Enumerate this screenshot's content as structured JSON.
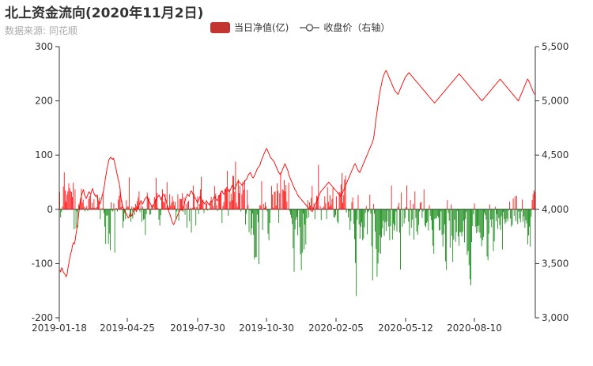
{
  "title": "北上资金流向(2020年11月2日)",
  "subtitle": "数据来源: 同花顺",
  "legend": {
    "bar_label": "当日净值(亿)",
    "line_label": "收盘价（右轴）"
  },
  "colors": {
    "positive": "#ff0000",
    "negative": "#008000",
    "line": "#ff0000",
    "legend_bar": "#c23531",
    "axis": "#333333"
  },
  "chart_data": {
    "type": "bar+line",
    "title": "北上资金流向(2020年11月2日)",
    "x_tick_labels": [
      "2019-01-18",
      "2019-04-25",
      "2019-07-30",
      "2019-10-30",
      "2020-02-05",
      "2020-05-12",
      "2020-08-10"
    ],
    "y_left": {
      "ticks": [
        300,
        200,
        100,
        0,
        -100,
        -200
      ],
      "ylim": [
        -200,
        300
      ]
    },
    "y_right": {
      "ticks": [
        "5,500",
        "5,000",
        "4,500",
        "4,000",
        "3,500",
        "3,000"
      ],
      "ylim": [
        3000,
        5500
      ]
    },
    "series": [
      {
        "name": "当日净值(亿)",
        "type": "bar",
        "values": [
          32,
          -15,
          -5,
          5,
          42,
          68,
          35,
          14,
          27,
          33,
          48,
          39,
          34,
          32,
          23,
          49,
          -37,
          37,
          -35,
          -4,
          -33,
          9,
          6,
          20,
          38,
          12,
          18,
          5,
          -4,
          3,
          6,
          -3,
          19,
          24,
          27,
          2,
          12,
          3,
          19,
          3,
          2,
          4,
          27,
          12,
          22,
          -18,
          1,
          2,
          33,
          -7,
          -32,
          -64,
          -12,
          -11,
          -64,
          -45,
          -75,
          13,
          -3,
          -4,
          11,
          -80,
          2,
          2,
          -4,
          18,
          25,
          38,
          4,
          16,
          -34,
          -22,
          -7,
          -18,
          17,
          5,
          5,
          59,
          -14,
          -23,
          5,
          -17,
          4,
          -10,
          10,
          6,
          15,
          22,
          33,
          -5,
          11,
          -23,
          5,
          -19,
          -18,
          -47,
          -9,
          31,
          20,
          21,
          -10,
          -9,
          7,
          9,
          1,
          23,
          19,
          58,
          30,
          3,
          -19,
          -30,
          -11,
          20,
          37,
          14,
          13,
          28,
          3,
          50,
          6,
          3,
          28,
          7,
          12,
          24,
          15,
          7,
          14,
          -19,
          -4,
          28,
          -21,
          19,
          19,
          19,
          30,
          -5,
          22,
          -10,
          10,
          -34,
          13,
          16,
          -22,
          3,
          -43,
          3,
          44,
          29,
          4,
          -30,
          4,
          24,
          -9,
          10,
          37,
          60,
          16,
          18,
          -7,
          1,
          10,
          12,
          -2,
          1,
          1,
          14,
          23,
          14,
          6,
          1,
          43,
          29,
          8,
          -3,
          26,
          26,
          30,
          34,
          -25,
          6,
          13,
          38,
          37,
          37,
          71,
          -12,
          37,
          14,
          29,
          17,
          62,
          61,
          32,
          88,
          12,
          5,
          55,
          30,
          44,
          -4,
          28,
          51,
          36,
          54,
          -28,
          -8,
          36,
          8,
          -42,
          -2,
          -47,
          -35,
          -8,
          -47,
          -92,
          -88,
          -88,
          -10,
          -24,
          -101,
          8,
          7,
          52,
          -38,
          10,
          3,
          13,
          6,
          -3,
          -45,
          -57,
          -25,
          -1,
          43,
          27,
          3,
          32,
          33,
          7,
          48,
          34,
          -25,
          30,
          68,
          1,
          37,
          35,
          54,
          33,
          45,
          14,
          1,
          49,
          -4,
          -10,
          -16,
          -27,
          -72,
          -115,
          -37,
          -19,
          -14,
          -48,
          -2,
          -33,
          -83,
          -112,
          -80,
          -8,
          -74,
          -28,
          -65,
          -17,
          17,
          -15,
          13,
          7,
          21,
          43,
          4,
          11,
          -18,
          5,
          25,
          24,
          82,
          -1,
          6,
          -20,
          3,
          1,
          5,
          24,
          11,
          -18,
          41,
          14,
          5,
          26,
          8,
          19,
          39,
          -15,
          -15,
          -11,
          24,
          -23,
          -26,
          32,
          31,
          46,
          67,
          12,
          26,
          55,
          62,
          -6,
          1,
          -15,
          -3,
          -38,
          -22,
          13,
          22,
          -27,
          -55,
          -99,
          -160,
          -19,
          26,
          -28,
          -54,
          -32,
          -24,
          -57,
          -54,
          -33,
          -7,
          6,
          -46,
          -5,
          -3,
          27,
          -8,
          -68,
          -131,
          10,
          -8,
          -41,
          -73,
          -124,
          -100,
          -80,
          -48,
          -82,
          -52,
          -35,
          -21,
          -49,
          -24,
          -40,
          -22,
          -2,
          -32,
          -57,
          -31,
          44,
          -56,
          -26,
          -39,
          -30,
          -4,
          -41,
          5,
          12,
          -43,
          -111,
          31,
          -32,
          -1,
          -26,
          -16,
          4,
          44,
          1,
          -23,
          -48,
          17,
          -34,
          -19,
          10,
          -56,
          33,
          -16,
          -41,
          -47,
          -29,
          -4,
          12,
          14,
          -16,
          -4,
          37,
          -30,
          -33,
          -25,
          -23,
          -39,
          8,
          -12,
          -20,
          -38,
          -67,
          -82,
          -18,
          -16,
          -17,
          -12,
          -15,
          -39,
          -38,
          -4,
          -47,
          -69,
          -45,
          -28,
          -96,
          -112,
          17,
          -7,
          -21,
          -71,
          9,
          -49,
          -97,
          -56,
          -19,
          -60,
          -42,
          -3,
          -50,
          -67,
          -42,
          -43,
          -50,
          -41,
          -21,
          -61,
          -18,
          -5,
          -84,
          -77,
          -103,
          -129,
          -140,
          -60,
          -31,
          -9,
          11,
          -32,
          -44,
          -31,
          -42,
          -30,
          -43,
          -53,
          -68,
          -57,
          -51,
          -6,
          -11,
          -19,
          -87,
          -94,
          -45,
          9,
          -19,
          -33,
          -18,
          -77,
          -59,
          5,
          -22,
          -9,
          -36,
          -16,
          -29,
          -38,
          -13,
          -74,
          -5,
          -18,
          -27,
          -24,
          -17,
          -22,
          -2,
          14,
          -17,
          -32,
          -29,
          20,
          -12,
          24,
          -22,
          25,
          -27,
          -4,
          -17,
          -24,
          -4,
          18,
          -23,
          -13,
          -34,
          -20,
          -26,
          -65,
          -48,
          -32,
          -69,
          -14,
          17,
          28,
          35,
          32
        ],
        "color_positive": "#ff0000",
        "color_negative": "#008000"
      },
      {
        "name": "收盘价（右轴）",
        "type": "line",
        "axis": "right",
        "values": [
          3440,
          3425,
          3460,
          3450,
          3420,
          3410,
          3395,
          3380,
          3400,
          3460,
          3500,
          3560,
          3590,
          3620,
          3670,
          3690,
          3680,
          3720,
          3780,
          3830,
          3900,
          3970,
          4050,
          4100,
          4130,
          4160,
          4180,
          4140,
          4120,
          4100,
          4120,
          4140,
          4160,
          4150,
          4140,
          4170,
          4190,
          4160,
          4140,
          4120,
          4130,
          4110,
          4080,
          4060,
          4050,
          4070,
          4110,
          4140,
          4170,
          4220,
          4280,
          4330,
          4380,
          4420,
          4460,
          4470,
          4480,
          4470,
          4460,
          4470,
          4440,
          4400,
          4360,
          4320,
          4280,
          4250,
          4200,
          4120,
          4060,
          4020,
          4010,
          3990,
          3970,
          3960,
          3940,
          3920,
          3930,
          3960,
          3950,
          3940,
          3960,
          3990,
          4010,
          4000,
          3980,
          4000,
          4020,
          4040,
          4060,
          4080,
          4060,
          4050,
          4070,
          4090,
          4100,
          4110,
          4120,
          4090,
          4070,
          4060,
          4040,
          4020,
          4020,
          4040,
          4060,
          4080,
          4090,
          4110,
          4120,
          4130,
          4110,
          4090,
          4110,
          4130,
          4140,
          4120,
          4100,
          4070,
          4030,
          4000,
          3970,
          3950,
          3920,
          3890,
          3870,
          3860,
          3880,
          3900,
          3920,
          3940,
          3960,
          3980,
          3990,
          4000,
          3990,
          4010,
          4030,
          4060,
          4100,
          4120,
          4140,
          4130,
          4120,
          4150,
          4170,
          4160,
          4140,
          4130,
          4110,
          4100,
          4080,
          4060,
          4080,
          4100,
          4120,
          4100,
          4080,
          4070,
          4060,
          4050,
          4070,
          4080,
          4060,
          4050,
          4040,
          4060,
          4080,
          4070,
          4090,
          4110,
          4120,
          4100,
          4090,
          4080,
          4100,
          4120,
          4140,
          4160,
          4170,
          4150,
          4140,
          4160,
          4180,
          4200,
          4190,
          4170,
          4160,
          4180,
          4200,
          4220,
          4210,
          4200,
          4190,
          4210,
          4230,
          4250,
          4260,
          4250,
          4240,
          4230,
          4220,
          4230,
          4240,
          4260,
          4270,
          4280,
          4300,
          4320,
          4330,
          4340,
          4320,
          4300,
          4290,
          4300,
          4320,
          4340,
          4360,
          4380,
          4390,
          4400,
          4420,
          4450,
          4470,
          4490,
          4510,
          4530,
          4550,
          4560,
          4540,
          4520,
          4500,
          4480,
          4470,
          4460,
          4450,
          4440,
          4420,
          4400,
          4380,
          4360,
          4340,
          4330,
          4320,
          4340,
          4360,
          4380,
          4400,
          4420,
          4400,
          4380,
          4360,
          4330,
          4300,
          4280,
          4260,
          4240,
          4220,
          4200,
          4180,
          4170,
          4150,
          4130,
          4120,
          4110,
          4100,
          4090,
          4080,
          4070,
          4060,
          4050,
          4040,
          4030,
          4020,
          4010,
          4000,
          3995,
          3985,
          3980,
          4000,
          4020,
          4040,
          4060,
          4080,
          4100,
          4120,
          4140,
          4160,
          4170,
          4180,
          4190,
          4200,
          4210,
          4220,
          4230,
          4240,
          4250,
          4240,
          4230,
          4220,
          4210,
          4200,
          4190,
          4180,
          4170,
          4160,
          4150,
          4140,
          4130,
          4120,
          4130,
          4150,
          4170,
          4190,
          4210,
          4230,
          4250,
          4270,
          4290,
          4310,
          4330,
          4350,
          4370,
          4390,
          4410,
          4420,
          4400,
          4380,
          4360,
          4350,
          4340,
          4360,
          4380,
          4400,
          4420,
          4440,
          4460,
          4480,
          4500,
          4520,
          4540,
          4560,
          4580,
          4600,
          4620,
          4650,
          4700,
          4780,
          4840,
          4900,
          4960,
          5020,
          5080,
          5120,
          5160,
          5200,
          5230,
          5250,
          5270,
          5280,
          5260,
          5240,
          5220,
          5200,
          5180,
          5160,
          5140,
          5120,
          5100,
          5090,
          5080,
          5070,
          5060,
          5080,
          5100,
          5120,
          5140,
          5160,
          5180,
          5200,
          5220,
          5230,
          5240,
          5250,
          5260,
          5250,
          5240,
          5230,
          5220,
          5210,
          5200,
          5190,
          5180,
          5170,
          5160,
          5150,
          5140,
          5130,
          5120,
          5110,
          5100,
          5090,
          5080,
          5070,
          5060,
          5050,
          5040,
          5030,
          5020,
          5010,
          5000,
          4990,
          4980,
          4990,
          5000,
          5010,
          5020,
          5030,
          5040,
          5050,
          5060,
          5070,
          5080,
          5090,
          5100,
          5110,
          5120,
          5130,
          5140,
          5150,
          5160,
          5170,
          5180,
          5190,
          5200,
          5210,
          5220,
          5230,
          5240,
          5250,
          5240,
          5230,
          5220,
          5210,
          5200,
          5190,
          5180,
          5170,
          5160,
          5150,
          5140,
          5130,
          5120,
          5110,
          5100,
          5090,
          5080,
          5070,
          5060,
          5050,
          5040,
          5030,
          5020,
          5010,
          5000,
          5010,
          5020,
          5030,
          5040,
          5050,
          5060,
          5070,
          5080,
          5090,
          5100,
          5110,
          5120,
          5130,
          5140,
          5150,
          5160,
          5170,
          5180,
          5190,
          5200,
          5190,
          5180,
          5170,
          5160,
          5150,
          5140,
          5130,
          5120,
          5110,
          5100,
          5090,
          5080,
          5070,
          5060,
          5050,
          5040,
          5030,
          5020,
          5010,
          5000,
          5020,
          5040,
          5060,
          5080,
          5100,
          5120,
          5140,
          5160,
          5180,
          5200,
          5190,
          5170,
          5150,
          5130,
          5110,
          5090,
          5070,
          5060
        ]
      }
    ]
  }
}
